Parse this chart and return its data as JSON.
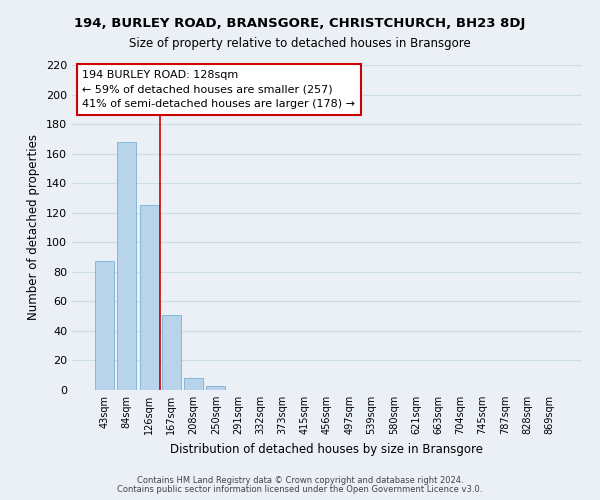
{
  "title": "194, BURLEY ROAD, BRANSGORE, CHRISTCHURCH, BH23 8DJ",
  "subtitle": "Size of property relative to detached houses in Bransgore",
  "xlabel": "Distribution of detached houses by size in Bransgore",
  "ylabel": "Number of detached properties",
  "bar_labels": [
    "43sqm",
    "84sqm",
    "126sqm",
    "167sqm",
    "208sqm",
    "250sqm",
    "291sqm",
    "332sqm",
    "373sqm",
    "415sqm",
    "456sqm",
    "497sqm",
    "539sqm",
    "580sqm",
    "621sqm",
    "663sqm",
    "704sqm",
    "745sqm",
    "787sqm",
    "828sqm",
    "869sqm"
  ],
  "bar_values": [
    87,
    168,
    125,
    51,
    8,
    3,
    0,
    0,
    0,
    0,
    0,
    0,
    0,
    0,
    0,
    0,
    0,
    0,
    0,
    0,
    0
  ],
  "bar_color": "#b8d4ea",
  "bar_edge_color": "#7ab0d4",
  "vline_color": "#cc0000",
  "annotation_line1": "194 BURLEY ROAD: 128sqm",
  "annotation_line2": "← 59% of detached houses are smaller (257)",
  "annotation_line3": "41% of semi-detached houses are larger (178) →",
  "ylim": [
    0,
    220
  ],
  "yticks": [
    0,
    20,
    40,
    60,
    80,
    100,
    120,
    140,
    160,
    180,
    200,
    220
  ],
  "footnote1": "Contains HM Land Registry data © Crown copyright and database right 2024.",
  "footnote2": "Contains public sector information licensed under the Open Government Licence v3.0.",
  "grid_color": "#ccdde8",
  "background_color": "#eaf0f6"
}
